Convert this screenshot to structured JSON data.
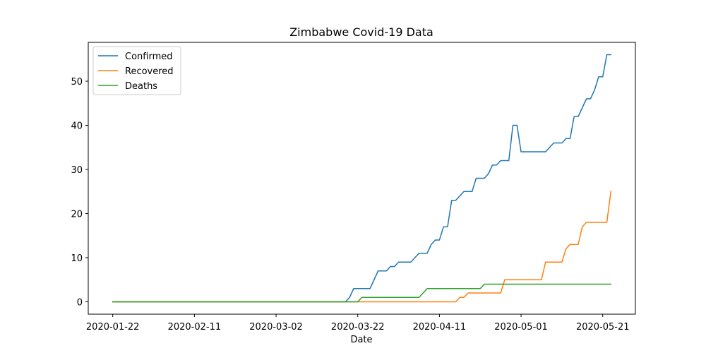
{
  "chart_data": {
    "type": "line",
    "title": "Zimbabwe Covid-19 Data",
    "xlabel": "Date",
    "ylabel": "",
    "x_type": "date",
    "x_start": "2020-01-22",
    "x_end": "2020-05-25",
    "xlim": [
      "2020-01-16",
      "2020-05-29"
    ],
    "ylim": [
      -2.8,
      58.8
    ],
    "x_ticks": [
      "2020-01-22",
      "2020-02-11",
      "2020-03-02",
      "2020-03-22",
      "2020-04-11",
      "2020-05-01",
      "2020-05-21"
    ],
    "y_ticks": [
      0,
      10,
      20,
      30,
      40,
      50
    ],
    "legend_position": "top-left",
    "grid": false,
    "series": [
      {
        "name": "Confirmed",
        "color": "#1f77b4",
        "points": [
          [
            "2020-01-22",
            0
          ],
          [
            "2020-03-19",
            0
          ],
          [
            "2020-03-20",
            1
          ],
          [
            "2020-03-21",
            3
          ],
          [
            "2020-03-25",
            3
          ],
          [
            "2020-03-26",
            5
          ],
          [
            "2020-03-27",
            7
          ],
          [
            "2020-03-29",
            7
          ],
          [
            "2020-03-30",
            8
          ],
          [
            "2020-03-31",
            8
          ],
          [
            "2020-04-01",
            9
          ],
          [
            "2020-04-04",
            9
          ],
          [
            "2020-04-05",
            10
          ],
          [
            "2020-04-06",
            11
          ],
          [
            "2020-04-08",
            11
          ],
          [
            "2020-04-09",
            13
          ],
          [
            "2020-04-10",
            14
          ],
          [
            "2020-04-11",
            14
          ],
          [
            "2020-04-12",
            17
          ],
          [
            "2020-04-13",
            17
          ],
          [
            "2020-04-14",
            23
          ],
          [
            "2020-04-15",
            23
          ],
          [
            "2020-04-17",
            25
          ],
          [
            "2020-04-19",
            25
          ],
          [
            "2020-04-20",
            28
          ],
          [
            "2020-04-22",
            28
          ],
          [
            "2020-04-23",
            29
          ],
          [
            "2020-04-24",
            31
          ],
          [
            "2020-04-25",
            31
          ],
          [
            "2020-04-26",
            32
          ],
          [
            "2020-04-28",
            32
          ],
          [
            "2020-04-29",
            40
          ],
          [
            "2020-04-30",
            40
          ],
          [
            "2020-05-01",
            34
          ],
          [
            "2020-05-07",
            34
          ],
          [
            "2020-05-09",
            36
          ],
          [
            "2020-05-11",
            36
          ],
          [
            "2020-05-12",
            37
          ],
          [
            "2020-05-13",
            37
          ],
          [
            "2020-05-14",
            42
          ],
          [
            "2020-05-15",
            42
          ],
          [
            "2020-05-17",
            46
          ],
          [
            "2020-05-18",
            46
          ],
          [
            "2020-05-19",
            48
          ],
          [
            "2020-05-20",
            51
          ],
          [
            "2020-05-21",
            51
          ],
          [
            "2020-05-22",
            56
          ],
          [
            "2020-05-23",
            56
          ]
        ]
      },
      {
        "name": "Recovered",
        "color": "#ff7f0e",
        "points": [
          [
            "2020-01-22",
            0
          ],
          [
            "2020-04-15",
            0
          ],
          [
            "2020-04-16",
            1
          ],
          [
            "2020-04-17",
            1
          ],
          [
            "2020-04-18",
            2
          ],
          [
            "2020-04-26",
            2
          ],
          [
            "2020-04-27",
            5
          ],
          [
            "2020-05-06",
            5
          ],
          [
            "2020-05-07",
            9
          ],
          [
            "2020-05-11",
            9
          ],
          [
            "2020-05-12",
            12
          ],
          [
            "2020-05-13",
            13
          ],
          [
            "2020-05-15",
            13
          ],
          [
            "2020-05-16",
            17
          ],
          [
            "2020-05-17",
            18
          ],
          [
            "2020-05-22",
            18
          ],
          [
            "2020-05-23",
            25
          ]
        ]
      },
      {
        "name": "Deaths",
        "color": "#2ca02c",
        "points": [
          [
            "2020-01-22",
            0
          ],
          [
            "2020-03-22",
            0
          ],
          [
            "2020-03-23",
            1
          ],
          [
            "2020-04-06",
            1
          ],
          [
            "2020-04-08",
            3
          ],
          [
            "2020-04-21",
            3
          ],
          [
            "2020-04-22",
            4
          ],
          [
            "2020-05-23",
            4
          ]
        ]
      }
    ]
  }
}
